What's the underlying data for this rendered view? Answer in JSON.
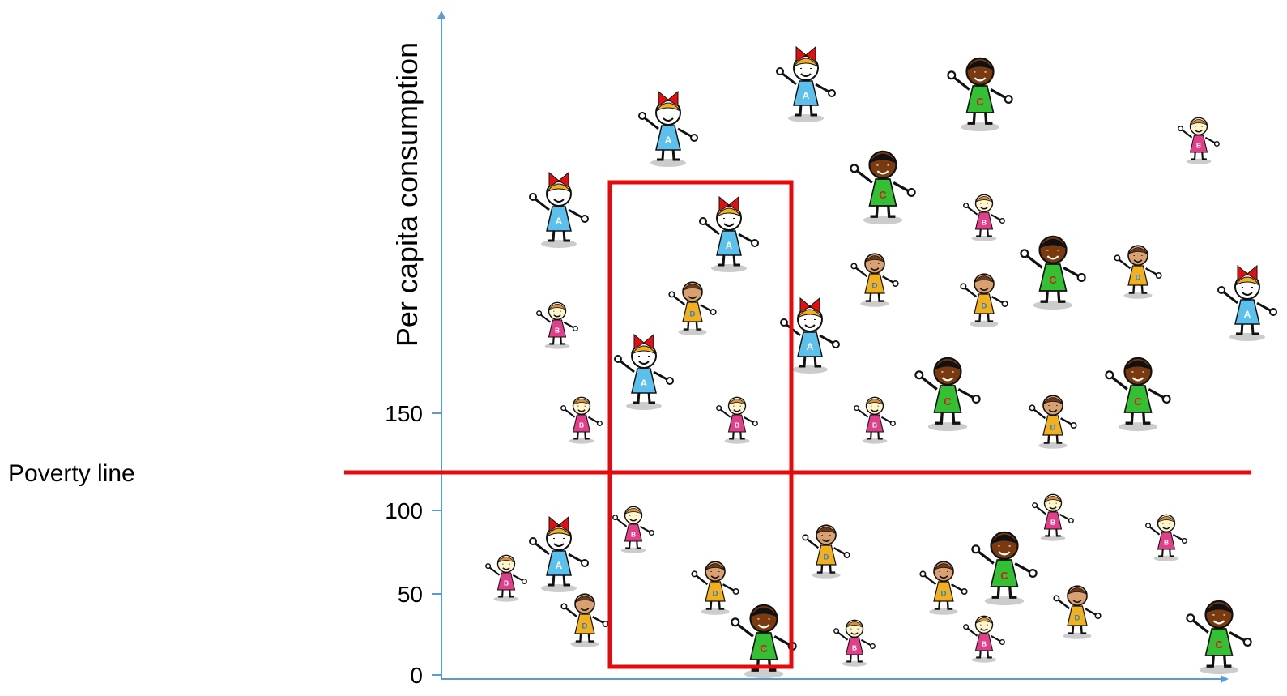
{
  "y_axis": {
    "label": "Per capita consumption",
    "ticks": [
      "0",
      "50",
      "100",
      "150"
    ]
  },
  "poverty_line": {
    "label": "Poverty line"
  },
  "figures": [
    {
      "letter": "A"
    },
    {
      "letter": "C"
    },
    {
      "letter": "A"
    },
    {
      "letter": "B"
    },
    {
      "letter": "C"
    },
    {
      "letter": "A"
    },
    {
      "letter": "B"
    },
    {
      "letter": "A"
    },
    {
      "letter": "C"
    },
    {
      "letter": "D"
    },
    {
      "letter": "D"
    },
    {
      "letter": "D"
    },
    {
      "letter": "A"
    },
    {
      "letter": "D"
    },
    {
      "letter": "A"
    },
    {
      "letter": "B"
    },
    {
      "letter": "A"
    },
    {
      "letter": "C"
    },
    {
      "letter": "C"
    },
    {
      "letter": "D"
    },
    {
      "letter": "B"
    },
    {
      "letter": "B"
    },
    {
      "letter": "B"
    },
    {
      "letter": "B"
    },
    {
      "letter": "B"
    },
    {
      "letter": "B"
    },
    {
      "letter": "A"
    },
    {
      "letter": "D"
    },
    {
      "letter": "C"
    },
    {
      "letter": "B"
    },
    {
      "letter": "D"
    },
    {
      "letter": "D"
    },
    {
      "letter": "D"
    },
    {
      "letter": "D"
    },
    {
      "letter": "C"
    },
    {
      "letter": "C"
    },
    {
      "letter": "B"
    },
    {
      "letter": "B"
    }
  ]
}
